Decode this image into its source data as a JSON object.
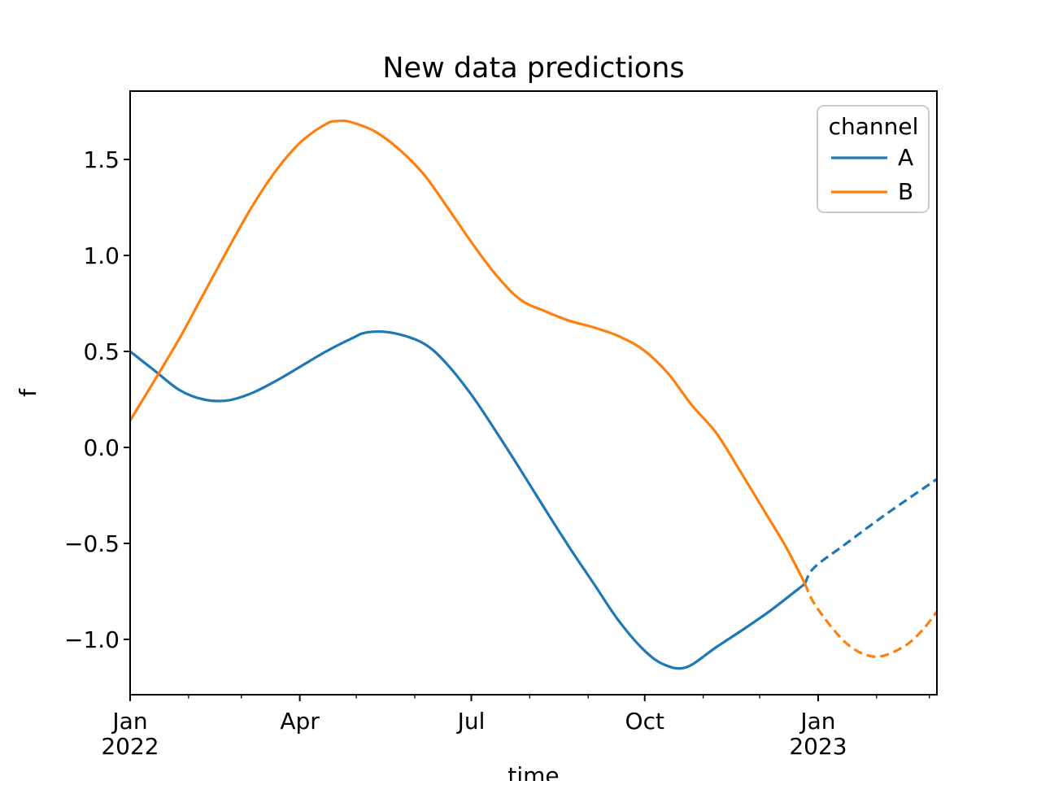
{
  "title": "New data predictions",
  "xlabel": "time",
  "ylabel": "f",
  "colors": {
    "channel_A": "#1f77b4",
    "channel_B": "#ff7f0e",
    "spine": "#000000",
    "legend_border": "#cccccc",
    "background": "#ffffff"
  },
  "legend": {
    "title": "channel",
    "position": "upper right",
    "entries": [
      {
        "label": "A",
        "color": "#1f77b4",
        "line_style": "solid"
      },
      {
        "label": "B",
        "color": "#ff7f0e",
        "line_style": "solid"
      }
    ]
  },
  "chart_data": {
    "type": "line",
    "title": "New data predictions",
    "xlabel": "time",
    "ylabel": "f",
    "grid": false,
    "x_unit": "days since 2022-01-01",
    "xlim": [
      0,
      428
    ],
    "ylim": [
      -1.288,
      1.856
    ],
    "y_ticks": [
      {
        "value": 1.5,
        "label": "1.5"
      },
      {
        "value": 1.0,
        "label": "1.0"
      },
      {
        "value": 0.5,
        "label": "0.5"
      },
      {
        "value": 0.0,
        "label": "0.0"
      },
      {
        "value": -0.5,
        "label": "−0.5"
      },
      {
        "value": -1.0,
        "label": "−1.0"
      }
    ],
    "x_major_ticks": [
      {
        "day": 0,
        "lines": [
          "Jan",
          "2022"
        ]
      },
      {
        "day": 90,
        "lines": [
          "Apr"
        ]
      },
      {
        "day": 181,
        "lines": [
          "Jul"
        ]
      },
      {
        "day": 273,
        "lines": [
          "Oct"
        ]
      },
      {
        "day": 365,
        "lines": [
          "Jan",
          "2023"
        ]
      }
    ],
    "x_minor_tick_days": [
      31,
      59,
      120,
      151,
      212,
      243,
      304,
      334,
      396,
      424
    ],
    "series": [
      {
        "name": "A",
        "channel": "A",
        "segment": "observed",
        "style": "solid",
        "color": "#1f77b4",
        "points": [
          [
            0,
            0.5
          ],
          [
            13,
            0.4
          ],
          [
            26,
            0.3
          ],
          [
            39,
            0.25
          ],
          [
            52,
            0.245
          ],
          [
            65,
            0.285
          ],
          [
            78,
            0.35
          ],
          [
            91,
            0.425
          ],
          [
            104,
            0.5
          ],
          [
            117,
            0.565
          ],
          [
            126,
            0.6
          ],
          [
            140,
            0.595
          ],
          [
            156,
            0.54
          ],
          [
            168,
            0.435
          ],
          [
            181,
            0.275
          ],
          [
            194,
            0.085
          ],
          [
            207,
            -0.115
          ],
          [
            220,
            -0.32
          ],
          [
            233,
            -0.52
          ],
          [
            246,
            -0.71
          ],
          [
            259,
            -0.9
          ],
          [
            272,
            -1.05
          ],
          [
            283,
            -1.13
          ],
          [
            295,
            -1.145
          ],
          [
            311,
            -1.04
          ],
          [
            328,
            -0.93
          ],
          [
            341,
            -0.84
          ],
          [
            358,
            -0.71
          ]
        ]
      },
      {
        "name": "A prediction",
        "channel": "A",
        "segment": "prediction",
        "style": "dashed",
        "color": "#1f77b4",
        "points": [
          [
            358,
            -0.71
          ],
          [
            363,
            -0.625
          ],
          [
            380,
            -0.5
          ],
          [
            400,
            -0.355
          ],
          [
            428,
            -0.165
          ]
        ]
      },
      {
        "name": "B",
        "channel": "B",
        "segment": "observed",
        "style": "solid",
        "color": "#ff7f0e",
        "points": [
          [
            0,
            0.14
          ],
          [
            13,
            0.35
          ],
          [
            26,
            0.565
          ],
          [
            39,
            0.8
          ],
          [
            52,
            1.035
          ],
          [
            65,
            1.26
          ],
          [
            78,
            1.45
          ],
          [
            91,
            1.595
          ],
          [
            104,
            1.685
          ],
          [
            110,
            1.7
          ],
          [
            117,
            1.695
          ],
          [
            130,
            1.645
          ],
          [
            143,
            1.55
          ],
          [
            156,
            1.42
          ],
          [
            168,
            1.255
          ],
          [
            181,
            1.07
          ],
          [
            194,
            0.9
          ],
          [
            207,
            0.77
          ],
          [
            220,
            0.71
          ],
          [
            233,
            0.66
          ],
          [
            246,
            0.625
          ],
          [
            259,
            0.58
          ],
          [
            272,
            0.51
          ],
          [
            285,
            0.39
          ],
          [
            298,
            0.22
          ],
          [
            311,
            0.075
          ],
          [
            324,
            -0.13
          ],
          [
            337,
            -0.34
          ],
          [
            348,
            -0.52
          ],
          [
            358,
            -0.71
          ]
        ]
      },
      {
        "name": "B prediction",
        "channel": "B",
        "segment": "prediction",
        "style": "dashed",
        "color": "#ff7f0e",
        "points": [
          [
            358,
            -0.71
          ],
          [
            364,
            -0.83
          ],
          [
            380,
            -1.02
          ],
          [
            395,
            -1.09
          ],
          [
            410,
            -1.04
          ],
          [
            420,
            -0.955
          ],
          [
            428,
            -0.855
          ]
        ]
      }
    ]
  }
}
